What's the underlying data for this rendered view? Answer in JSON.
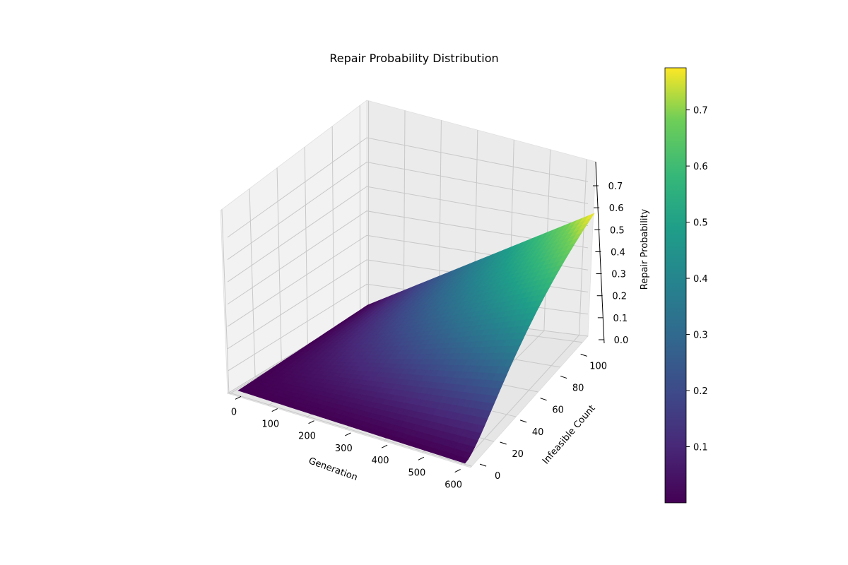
{
  "chart_data": {
    "type": "surface",
    "title": "Repair Probability Distribution",
    "xlabel": "Generation",
    "ylabel": "Infeasible Count",
    "zlabel": "Repair Probability",
    "xlim": [
      0,
      600
    ],
    "ylim": [
      0,
      100
    ],
    "zlim": [
      0,
      0.775
    ],
    "x_ticks": [
      "0",
      "100",
      "200",
      "300",
      "400",
      "500",
      "600"
    ],
    "y_ticks": [
      "0",
      "20",
      "40",
      "60",
      "80",
      "100"
    ],
    "z_ticks": [
      "0.0",
      "0.1",
      "0.2",
      "0.3",
      "0.4",
      "0.5",
      "0.6",
      "0.7"
    ],
    "colorbar_ticks": [
      "0.1",
      "0.2",
      "0.3",
      "0.4",
      "0.5",
      "0.6",
      "0.7"
    ],
    "colorbar_range": [
      0,
      0.775
    ],
    "colormap": "viridis",
    "grid": true,
    "surface_samples": {
      "generation": [
        0,
        600,
        0,
        600
      ],
      "infeasible_count": [
        0,
        0,
        100,
        100
      ],
      "repair_probability": [
        0,
        0,
        0,
        0.775
      ]
    }
  }
}
